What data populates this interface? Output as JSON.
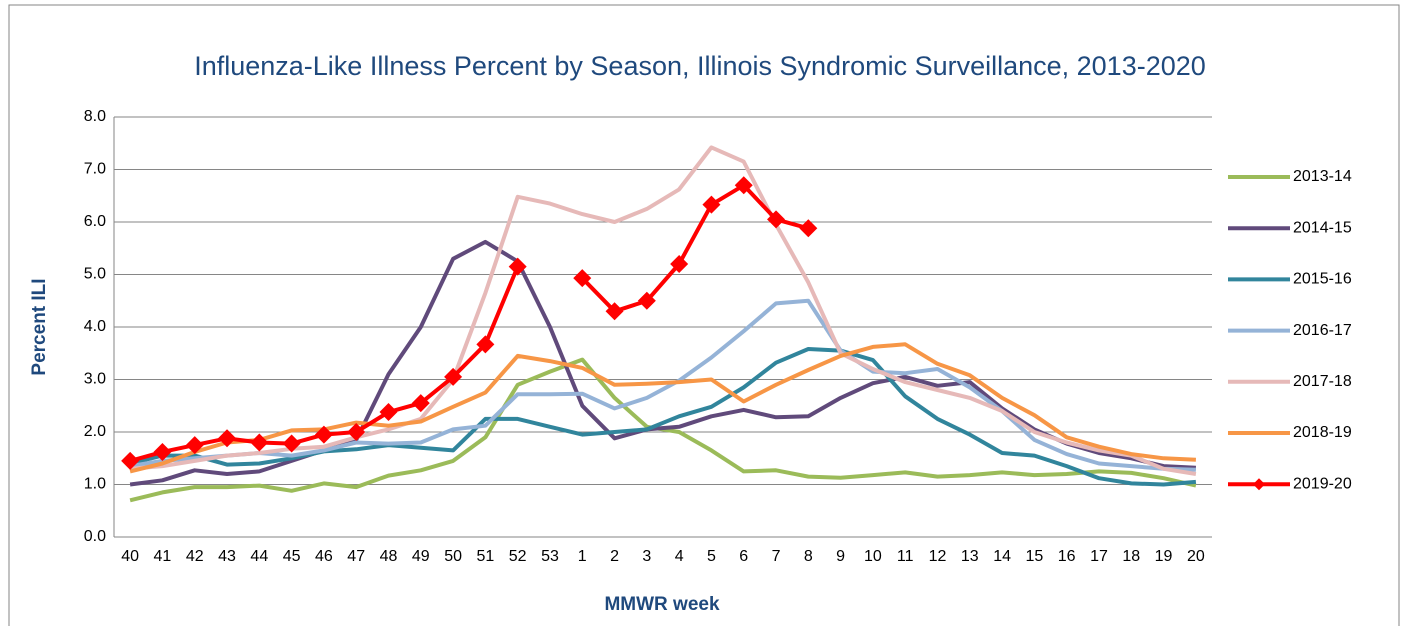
{
  "chart_data": {
    "type": "line",
    "title": "Influenza-Like Illness Percent by Season, Illinois Syndromic Surveillance, 2013-2020",
    "x_label": "MMWR week",
    "y_label": "Percent ILI",
    "categories": [
      "40",
      "41",
      "42",
      "43",
      "44",
      "45",
      "46",
      "47",
      "48",
      "49",
      "50",
      "51",
      "52",
      "53",
      "1",
      "2",
      "3",
      "4",
      "5",
      "6",
      "7",
      "8",
      "9",
      "10",
      "11",
      "12",
      "13",
      "14",
      "15",
      "16",
      "17",
      "18",
      "19",
      "20"
    ],
    "ylim": [
      0,
      8
    ],
    "yticks": [
      {
        "value": 0,
        "label": "0.0"
      },
      {
        "value": 1,
        "label": "1.0"
      },
      {
        "value": 2,
        "label": "2.0"
      },
      {
        "value": 3,
        "label": "3.0"
      },
      {
        "value": 4,
        "label": "4.0"
      },
      {
        "value": 5,
        "label": "5.0"
      },
      {
        "value": 6,
        "label": "6.0"
      },
      {
        "value": 7,
        "label": "7.0"
      },
      {
        "value": 8,
        "label": "8.0"
      }
    ],
    "grid": true,
    "legend": "right",
    "series": [
      {
        "name": "2013-14",
        "color": "#9bbb59",
        "values": [
          0.7,
          0.85,
          0.95,
          0.95,
          0.98,
          0.88,
          1.02,
          0.95,
          1.17,
          1.27,
          1.45,
          1.9,
          2.9,
          3.15,
          3.38,
          2.65,
          2.1,
          2.0,
          1.65,
          1.25,
          1.27,
          1.15,
          1.13,
          1.18,
          1.23,
          1.15,
          1.18,
          1.23,
          1.18,
          1.2,
          1.25,
          1.22,
          1.12,
          0.98
        ]
      },
      {
        "name": "2014-15",
        "color": "#604a7b",
        "values": [
          1.0,
          1.08,
          1.27,
          1.2,
          1.25,
          1.45,
          1.65,
          1.85,
          3.1,
          4.0,
          5.3,
          5.62,
          5.25,
          4.0,
          2.5,
          1.88,
          2.05,
          2.1,
          2.3,
          2.42,
          2.28,
          2.3,
          2.65,
          2.93,
          3.05,
          2.88,
          2.95,
          2.45,
          2.05,
          1.78,
          1.6,
          1.5,
          1.35,
          1.32
        ]
      },
      {
        "name": "2015-16",
        "color": "#31859c",
        "values": [
          1.4,
          1.55,
          1.55,
          1.38,
          1.4,
          1.5,
          1.63,
          1.67,
          1.75,
          1.7,
          1.65,
          2.25,
          2.25,
          2.1,
          1.95,
          2.0,
          2.05,
          2.3,
          2.48,
          2.85,
          3.32,
          3.58,
          3.55,
          3.37,
          2.68,
          2.25,
          1.95,
          1.6,
          1.55,
          1.35,
          1.12,
          1.02,
          1.0,
          1.05
        ]
      },
      {
        "name": "2016-17",
        "color": "#95b3d7",
        "values": [
          1.35,
          1.45,
          1.5,
          1.55,
          1.6,
          1.55,
          1.65,
          1.8,
          1.78,
          1.8,
          2.05,
          2.12,
          2.72,
          2.72,
          2.73,
          2.45,
          2.65,
          2.98,
          3.42,
          3.92,
          4.45,
          4.5,
          3.55,
          3.15,
          3.12,
          3.2,
          2.85,
          2.4,
          1.85,
          1.58,
          1.4,
          1.35,
          1.3,
          1.28
        ]
      },
      {
        "name": "2017-18",
        "color": "#e6b9b8",
        "values": [
          1.3,
          1.35,
          1.45,
          1.55,
          1.6,
          1.68,
          1.72,
          1.9,
          2.05,
          2.25,
          3.0,
          4.65,
          6.48,
          6.35,
          6.15,
          6.0,
          6.25,
          6.62,
          7.42,
          7.15,
          5.95,
          4.85,
          3.5,
          3.2,
          2.95,
          2.8,
          2.65,
          2.4,
          2.0,
          1.8,
          1.65,
          1.55,
          1.3,
          1.2
        ]
      },
      {
        "name": "2018-19",
        "color": "#f79646",
        "values": [
          1.25,
          1.4,
          1.62,
          1.8,
          1.85,
          2.03,
          2.05,
          2.18,
          2.12,
          2.2,
          2.48,
          2.75,
          3.45,
          3.35,
          3.22,
          2.9,
          2.92,
          2.95,
          3.0,
          2.58,
          2.9,
          3.18,
          3.45,
          3.62,
          3.67,
          3.3,
          3.08,
          2.65,
          2.32,
          1.9,
          1.72,
          1.58,
          1.5,
          1.47
        ]
      },
      {
        "name": "2019-20",
        "color": "#ff0000",
        "marker": "diamond",
        "values": [
          1.45,
          1.62,
          1.75,
          1.88,
          1.8,
          1.78,
          1.95,
          2.0,
          2.38,
          2.55,
          3.05,
          3.67,
          5.15,
          null,
          4.93,
          4.3,
          4.5,
          5.2,
          6.33,
          6.7,
          6.05,
          5.88,
          null,
          null,
          null,
          null,
          null,
          null,
          null,
          null,
          null,
          null,
          null,
          null
        ]
      }
    ]
  }
}
